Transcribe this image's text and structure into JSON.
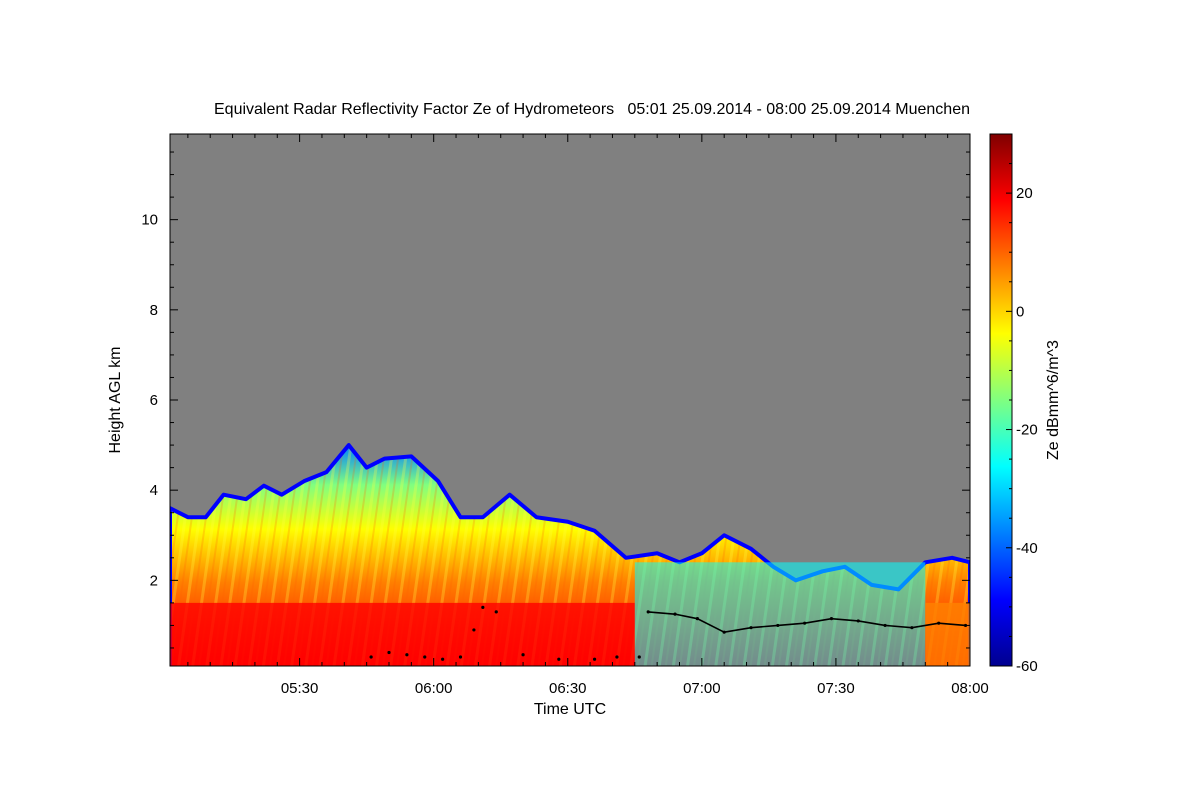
{
  "chart_data": {
    "type": "heatmap",
    "title": "Equivalent Radar Reflectivity Factor Ze of Hydrometeors   05:01 25.09.2014 - 08:00 25.09.2014 Muenchen",
    "xlabel": "Time UTC",
    "ylabel": "Height AGL km",
    "xlim_minutes": [
      301,
      480
    ],
    "ylim_km": [
      0.1,
      11.9
    ],
    "x_ticks": [
      {
        "value": 330,
        "label": "05:30"
      },
      {
        "value": 360,
        "label": "06:00"
      },
      {
        "value": 390,
        "label": "06:30"
      },
      {
        "value": 420,
        "label": "07:00"
      },
      {
        "value": 450,
        "label": "07:30"
      },
      {
        "value": 480,
        "label": "08:00"
      }
    ],
    "y_ticks": [
      {
        "value": 2,
        "label": "2"
      },
      {
        "value": 4,
        "label": "4"
      },
      {
        "value": 6,
        "label": "6"
      },
      {
        "value": 8,
        "label": "8"
      },
      {
        "value": 10,
        "label": "10"
      }
    ],
    "colorbar": {
      "label": "Ze dBmm^6/m^3",
      "range": [
        -60,
        30
      ],
      "ticks": [
        {
          "value": 20,
          "label": "20"
        },
        {
          "value": 0,
          "label": "0"
        },
        {
          "value": -20,
          "label": "-20"
        },
        {
          "value": -40,
          "label": "-40"
        },
        {
          "value": -60,
          "label": "-60"
        }
      ],
      "colors": [
        "#00008f",
        "#0000ff",
        "#0080ff",
        "#00ffff",
        "#80ff80",
        "#ffff00",
        "#ff8000",
        "#ff0000",
        "#800000"
      ]
    },
    "background_color": "#808080",
    "echo_top_km": [
      {
        "t": 301,
        "h": 3.6
      },
      {
        "t": 305,
        "h": 3.4
      },
      {
        "t": 309,
        "h": 3.4
      },
      {
        "t": 313,
        "h": 3.9
      },
      {
        "t": 318,
        "h": 3.8
      },
      {
        "t": 322,
        "h": 4.1
      },
      {
        "t": 326,
        "h": 3.9
      },
      {
        "t": 331,
        "h": 4.2
      },
      {
        "t": 336,
        "h": 4.4
      },
      {
        "t": 341,
        "h": 5.0
      },
      {
        "t": 345,
        "h": 4.5
      },
      {
        "t": 349,
        "h": 4.7
      },
      {
        "t": 355,
        "h": 4.75
      },
      {
        "t": 361,
        "h": 4.2
      },
      {
        "t": 366,
        "h": 3.4
      },
      {
        "t": 371,
        "h": 3.4
      },
      {
        "t": 377,
        "h": 3.9
      },
      {
        "t": 383,
        "h": 3.4
      },
      {
        "t": 390,
        "h": 3.3
      },
      {
        "t": 396,
        "h": 3.1
      },
      {
        "t": 403,
        "h": 2.5
      },
      {
        "t": 410,
        "h": 2.6
      },
      {
        "t": 415,
        "h": 2.4
      },
      {
        "t": 420,
        "h": 2.6
      },
      {
        "t": 425,
        "h": 3.0
      },
      {
        "t": 431,
        "h": 2.7
      },
      {
        "t": 436,
        "h": 2.3
      },
      {
        "t": 441,
        "h": 2.0
      },
      {
        "t": 447,
        "h": 2.2
      },
      {
        "t": 452,
        "h": 2.3
      },
      {
        "t": 458,
        "h": 1.9
      },
      {
        "t": 464,
        "h": 1.8
      },
      {
        "t": 470,
        "h": 2.4
      },
      {
        "t": 476,
        "h": 2.5
      },
      {
        "t": 480,
        "h": 2.4
      }
    ],
    "bright_band_km": [
      0.3,
      1.5
    ],
    "cloud_base_km": [
      {
        "t": 346,
        "h": 0.3
      },
      {
        "t": 350,
        "h": 0.4
      },
      {
        "t": 354,
        "h": 0.35
      },
      {
        "t": 358,
        "h": 0.3
      },
      {
        "t": 362,
        "h": 0.25
      },
      {
        "t": 366,
        "h": 0.3
      },
      {
        "t": 369,
        "h": 0.9
      },
      {
        "t": 371,
        "h": 1.4
      },
      {
        "t": 374,
        "h": 1.3
      },
      {
        "t": 380,
        "h": 0.35
      },
      {
        "t": 388,
        "h": 0.25
      },
      {
        "t": 396,
        "h": 0.25
      },
      {
        "t": 401,
        "h": 0.3
      },
      {
        "t": 406,
        "h": 0.3
      },
      {
        "t": 408,
        "h": 1.3
      },
      {
        "t": 414,
        "h": 1.25
      },
      {
        "t": 419,
        "h": 1.15
      },
      {
        "t": 425,
        "h": 0.85
      },
      {
        "t": 431,
        "h": 0.95
      },
      {
        "t": 437,
        "h": 1.0
      },
      {
        "t": 443,
        "h": 1.05
      },
      {
        "t": 449,
        "h": 1.15
      },
      {
        "t": 455,
        "h": 1.1
      },
      {
        "t": 461,
        "h": 1.0
      },
      {
        "t": 467,
        "h": 0.95
      },
      {
        "t": 473,
        "h": 1.05
      },
      {
        "t": 479,
        "h": 1.0
      }
    ]
  }
}
